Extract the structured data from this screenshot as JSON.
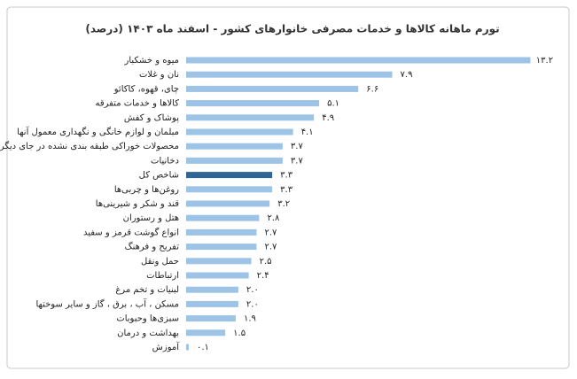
{
  "chart_data": {
    "type": "barh",
    "title": "تورم ماهانه کالاها و خدمات مصرفی خانوارهای کشور - اسفند ماه ۱۴۰۳ (درصد)",
    "categories": [
      "میوه و خشکبار",
      "نان و غلات",
      "چای، قهوه، کاکائو",
      "کالاها و خدمات متفرقه",
      "پوشاک و کفش",
      "مبلمان و لوازم خانگی و نگهداری معمول آنها",
      "محصولات خوراکی طبقه بندی نشده در جای دیگر",
      "دخانیات",
      "شاخص کل",
      "روغن‌ها و چربی‌ها",
      "قند و شکر و شیرینی‌ها",
      "هتل و رستوران",
      "انواع گوشت قرمز و سفید",
      "تفریح و فرهنگ",
      "حمل ونقل",
      "ارتباطات",
      "لبنیات و تخم مرغ",
      "مسکن ، آب ، برق ، گاز و سایر سوختها",
      "سبزی‌ها وحبوبات",
      "بهداشت و درمان",
      "آموزش"
    ],
    "values": [
      13.2,
      7.9,
      6.6,
      5.1,
      4.9,
      4.1,
      3.7,
      3.7,
      3.3,
      3.3,
      3.2,
      2.8,
      2.7,
      2.7,
      2.5,
      2.4,
      2.0,
      2.0,
      1.9,
      1.5,
      0.1
    ],
    "value_labels": [
      "۱۳.۲",
      "۷.۹",
      "۶.۶",
      "۵.۱",
      "۴.۹",
      "۴.۱",
      "۳.۷",
      "۳.۷",
      "۳.۳",
      "۳.۳",
      "۳.۲",
      "۲.۸",
      "۲.۷",
      "۲.۷",
      "۲.۵",
      "۲.۴",
      "۲.۰",
      "۲.۰",
      "۱.۹",
      "۱.۵",
      "۰.۱"
    ],
    "colors": [
      "#9dc3e6",
      "#9dc3e6",
      "#9dc3e6",
      "#9dc3e6",
      "#9dc3e6",
      "#9dc3e6",
      "#9dc3e6",
      "#9dc3e6",
      "#2e6594",
      "#9dc3e6",
      "#9dc3e6",
      "#9dc3e6",
      "#9dc3e6",
      "#9dc3e6",
      "#9dc3e6",
      "#9dc3e6",
      "#9dc3e6",
      "#9dc3e6",
      "#9dc3e6",
      "#9dc3e6",
      "#9dc3e6"
    ],
    "xlim": [
      0,
      14
    ]
  }
}
